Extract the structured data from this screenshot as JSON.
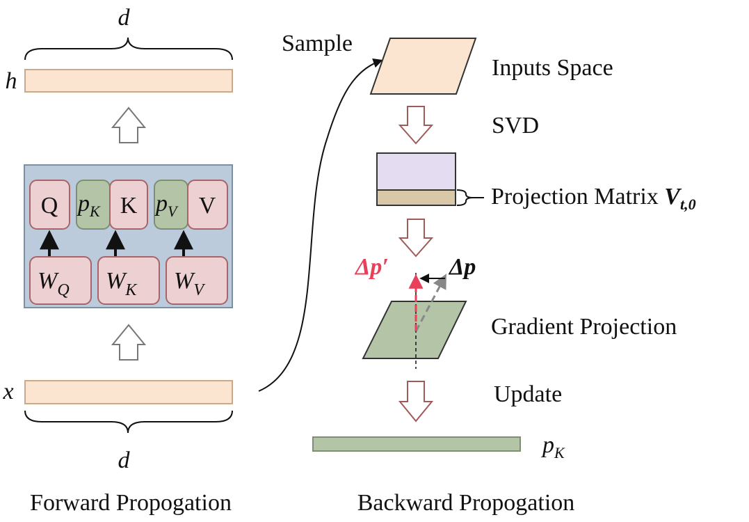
{
  "forward": {
    "dim_label_top": "d",
    "dim_label_bottom": "d",
    "h_label": "h",
    "x_label": "x",
    "q_label": "Q",
    "k_label": "K",
    "v_label": "V",
    "pk_base": "p",
    "pk_sub": "K",
    "pv_base": "p",
    "pv_sub": "V",
    "wq_base": "W",
    "wq_sub": "Q",
    "wk_base": "W",
    "wk_sub": "K",
    "wv_base": "W",
    "wv_sub": "V",
    "caption": "Forward Propogation"
  },
  "backward": {
    "sample_label": "Sample",
    "inputs_space_label": "Inputs Space",
    "svd_label": "SVD",
    "projection_matrix_text": "Projection Matrix ",
    "projection_matrix_symbol": "V",
    "projection_matrix_sub": "t,0",
    "delta_p_prime": "Δp′",
    "delta_p": "Δp",
    "gradient_projection_label": "Gradient Projection",
    "update_label": "Update",
    "pk_base": "p",
    "pk_sub": "K",
    "caption": "Backward Propogation"
  },
  "colors": {
    "peach": "#fbe5d0",
    "peach_stroke": "#c9a98a",
    "pink": "#ecd0d2",
    "pink_stroke": "#a8646a",
    "green": "#b4c4a6",
    "green_stroke": "#7d8f70",
    "blue_panel": "#bccbdb",
    "blue_panel_stroke": "#7e8fa0",
    "lavender": "#e4dcf0",
    "tan": "#d9c8a8",
    "arrow_outline": "#a05a5a",
    "red": "#e8405a",
    "gray_dash": "#888888"
  }
}
